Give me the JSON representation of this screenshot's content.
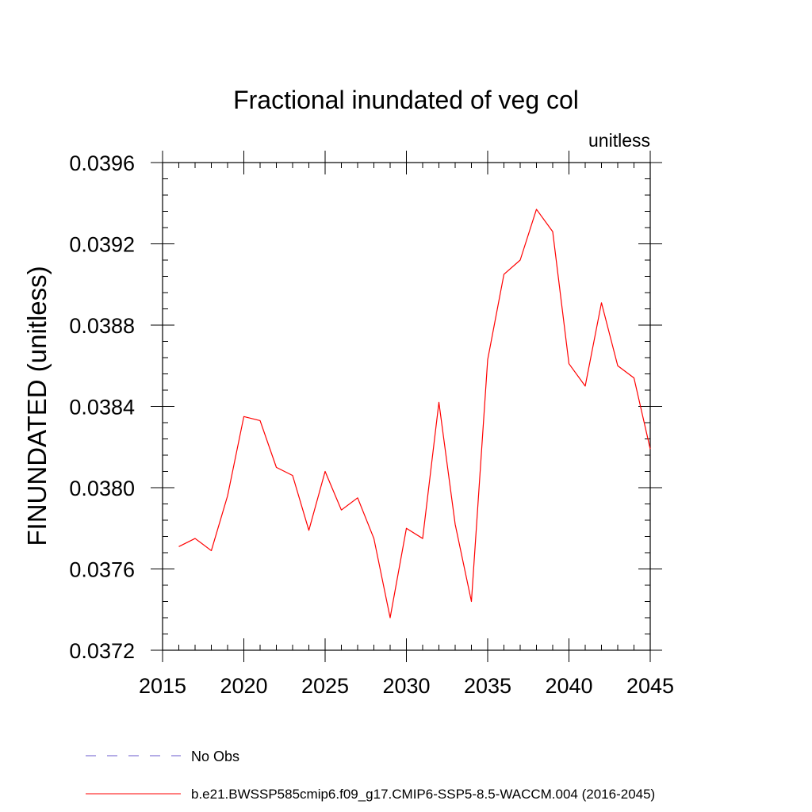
{
  "chart_data": {
    "type": "line",
    "title": "Fractional inundated of veg col",
    "units_label": "unitless",
    "xlabel": "",
    "ylabel": "FINUNDATED  (unitless)",
    "xlim": [
      2015,
      2045
    ],
    "ylim": [
      0.0372,
      0.0396
    ],
    "x_ticks": [
      2015,
      2020,
      2025,
      2030,
      2035,
      2040,
      2045
    ],
    "x_tick_labels": [
      "2015",
      "2020",
      "2025",
      "2030",
      "2035",
      "2040",
      "2045"
    ],
    "y_ticks": [
      0.0372,
      0.0376,
      0.038,
      0.0384,
      0.0388,
      0.0392,
      0.0396
    ],
    "y_tick_labels": [
      "0.0372",
      "0.0376",
      "0.0380",
      "0.0384",
      "0.0388",
      "0.0392",
      "0.0396"
    ],
    "x": [
      2016,
      2017,
      2018,
      2019,
      2020,
      2021,
      2022,
      2023,
      2024,
      2025,
      2026,
      2027,
      2028,
      2029,
      2030,
      2031,
      2032,
      2033,
      2034,
      2035,
      2036,
      2037,
      2038,
      2039,
      2040,
      2041,
      2042,
      2043,
      2044,
      2045
    ],
    "series": [
      {
        "name": "b.e21.BWSSP585cmip6.f09_g17.CMIP6-SSP5-8.5-WACCM.004 (2016-2045)",
        "color": "#ff0000",
        "dash": "solid",
        "values": [
          0.03771,
          0.03775,
          0.03769,
          0.03796,
          0.03835,
          0.03833,
          0.0381,
          0.03806,
          0.03779,
          0.03808,
          0.03789,
          0.03795,
          0.03775,
          0.03736,
          0.0378,
          0.03775,
          0.03842,
          0.03782,
          0.03744,
          0.03863,
          0.03905,
          0.03912,
          0.03937,
          0.03926,
          0.03861,
          0.0385,
          0.03891,
          0.0386,
          0.03854,
          0.03819
        ]
      }
    ],
    "legend": {
      "position": "bottom",
      "entries": [
        {
          "label": "No Obs",
          "color": "#6a5acd",
          "dash": "dashed"
        },
        {
          "label": "b.e21.BWSSP585cmip6.f09_g17.CMIP6-SSP5-8.5-WACCM.004 (2016-2045)",
          "color": "#ff0000",
          "dash": "solid"
        }
      ]
    },
    "grid": false
  }
}
